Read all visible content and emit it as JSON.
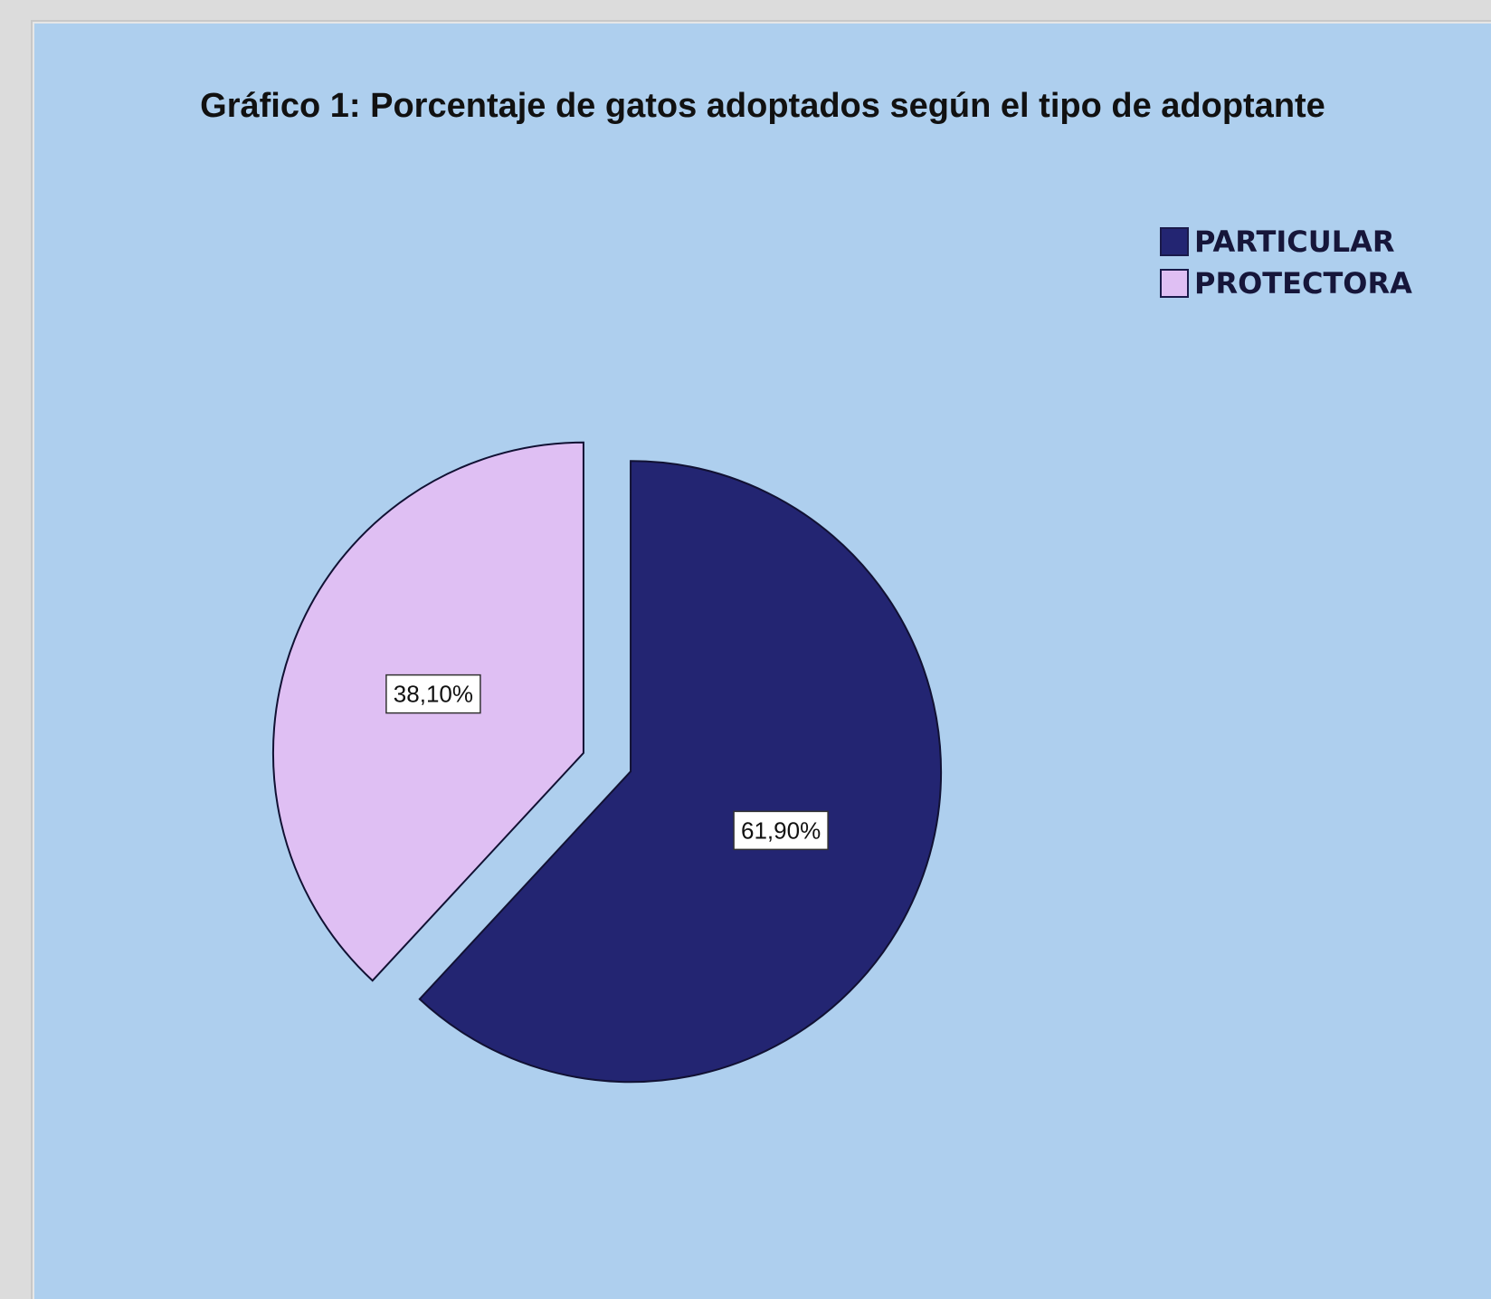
{
  "chart_data": {
    "type": "pie",
    "title": "Gráfico 1: Porcentaje de gatos adoptados según el tipo de adoptante",
    "slices": [
      {
        "label": "PARTICULAR",
        "value": 61.9,
        "display": "61,90%",
        "color": "#232572"
      },
      {
        "label": "PROTECTORA",
        "value": 38.1,
        "display": "38,10%",
        "color": "#dfbff3"
      }
    ],
    "legend_position": "top-right",
    "exploded": true,
    "background_color": "#aecfee"
  }
}
